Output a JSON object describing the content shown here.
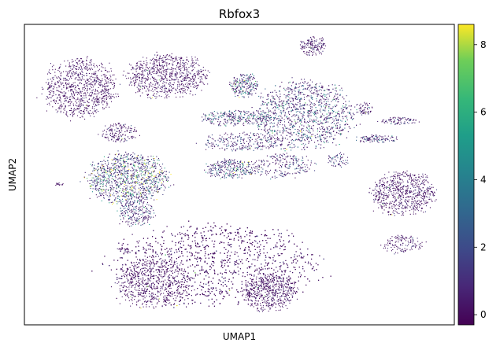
{
  "chart_data": {
    "type": "scatter",
    "title": "Rbfox3",
    "xlabel": "UMAP1",
    "ylabel": "UMAP2",
    "grid": false,
    "legend": "colorbar-right",
    "colormap": "viridis",
    "color_range": [
      -0.3,
      8.6
    ],
    "colorbar_ticks": [
      "0",
      "2",
      "4",
      "6",
      "8"
    ],
    "colorbar_tick_values": [
      0,
      2,
      4,
      6,
      8
    ],
    "xlim": [
      0,
      100
    ],
    "ylim": [
      0,
      100
    ],
    "clusters": [
      {
        "name": "upper-left-a",
        "cx": 13,
        "cy": 79,
        "rx": 8,
        "ry": 9,
        "n": 900,
        "mean": 0.3
      },
      {
        "name": "upper-left-b",
        "cx": 33,
        "cy": 83,
        "rx": 9,
        "ry": 7,
        "n": 800,
        "mean": 0.3
      },
      {
        "name": "left-strip",
        "cx": 22,
        "cy": 64,
        "rx": 4,
        "ry": 3,
        "n": 160,
        "mean": 0.6
      },
      {
        "name": "mid-left-green",
        "cx": 24,
        "cy": 49,
        "rx": 9,
        "ry": 8,
        "n": 1100,
        "mean": 3.6
      },
      {
        "name": "mid-left-tail",
        "cx": 26,
        "cy": 38,
        "rx": 4,
        "ry": 5,
        "n": 250,
        "mean": 1.8
      },
      {
        "name": "top-center-small",
        "cx": 51,
        "cy": 80,
        "rx": 3,
        "ry": 4,
        "n": 220,
        "mean": 2.4
      },
      {
        "name": "center-band",
        "cx": 49,
        "cy": 69,
        "rx": 8,
        "ry": 2.5,
        "n": 280,
        "mean": 2.2
      },
      {
        "name": "center-lower",
        "cx": 48,
        "cy": 52,
        "rx": 6,
        "ry": 3,
        "n": 300,
        "mean": 2.6
      },
      {
        "name": "center-right-strands",
        "cx": 51,
        "cy": 61,
        "rx": 9,
        "ry": 3,
        "n": 260,
        "mean": 1.5
      },
      {
        "name": "big-right-mixed",
        "cx": 65,
        "cy": 70,
        "rx": 11,
        "ry": 11,
        "n": 1500,
        "mean": 2.0
      },
      {
        "name": "top-right-small",
        "cx": 67,
        "cy": 93,
        "rx": 3,
        "ry": 3,
        "n": 150,
        "mean": 0.4
      },
      {
        "name": "mid-strands-right",
        "cx": 60,
        "cy": 53,
        "rx": 7,
        "ry": 4,
        "n": 220,
        "mean": 1.3
      },
      {
        "name": "right-streak-a",
        "cx": 82,
        "cy": 62,
        "rx": 5,
        "ry": 1.2,
        "n": 110,
        "mean": 1.4
      },
      {
        "name": "right-streak-b",
        "cx": 87,
        "cy": 68,
        "rx": 4,
        "ry": 1.2,
        "n": 90,
        "mean": 1.2
      },
      {
        "name": "right-small-a",
        "cx": 79,
        "cy": 72,
        "rx": 2,
        "ry": 2,
        "n": 60,
        "mean": 1.0
      },
      {
        "name": "right-small-b",
        "cx": 73,
        "cy": 55,
        "rx": 2.5,
        "ry": 2.5,
        "n": 60,
        "mean": 1.6
      },
      {
        "name": "right-cluster",
        "cx": 88,
        "cy": 44,
        "rx": 7,
        "ry": 7,
        "n": 700,
        "mean": 0.35
      },
      {
        "name": "right-bottom-specks",
        "cx": 88,
        "cy": 27,
        "rx": 5,
        "ry": 3,
        "n": 130,
        "mean": 0.5
      },
      {
        "name": "bottom-big",
        "cx": 44,
        "cy": 20,
        "rx": 23,
        "ry": 13,
        "n": 3400,
        "mean": 0.2
      },
      {
        "name": "bottom-left-lobe",
        "cx": 30,
        "cy": 14,
        "rx": 8,
        "ry": 8,
        "n": 600,
        "mean": 0.2
      },
      {
        "name": "bottom-right-lobe",
        "cx": 57,
        "cy": 11,
        "rx": 6,
        "ry": 6,
        "n": 500,
        "mean": 0.25
      },
      {
        "name": "lone-left",
        "cx": 8,
        "cy": 47,
        "rx": 1,
        "ry": 0.5,
        "n": 15,
        "mean": 0.3
      },
      {
        "name": "lone-bottom-left",
        "cx": 23,
        "cy": 25,
        "rx": 1.5,
        "ry": 0.8,
        "n": 25,
        "mean": 0.3
      }
    ]
  }
}
